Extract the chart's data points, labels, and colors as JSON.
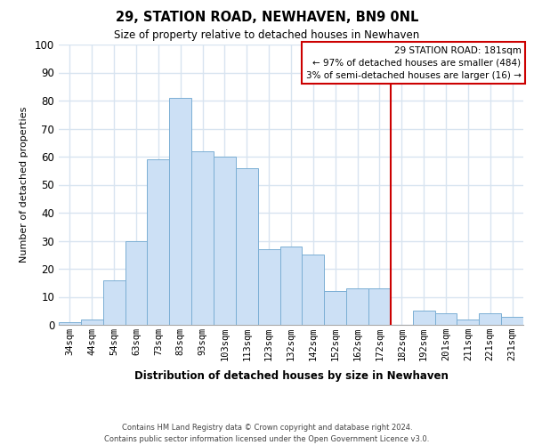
{
  "title": "29, STATION ROAD, NEWHAVEN, BN9 0NL",
  "subtitle": "Size of property relative to detached houses in Newhaven",
  "xlabel": "Distribution of detached houses by size in Newhaven",
  "ylabel": "Number of detached properties",
  "bar_labels": [
    "34sqm",
    "44sqm",
    "54sqm",
    "63sqm",
    "73sqm",
    "83sqm",
    "93sqm",
    "103sqm",
    "113sqm",
    "123sqm",
    "132sqm",
    "142sqm",
    "152sqm",
    "162sqm",
    "172sqm",
    "182sqm",
    "192sqm",
    "201sqm",
    "211sqm",
    "221sqm",
    "231sqm"
  ],
  "bar_values": [
    1,
    2,
    16,
    30,
    59,
    81,
    62,
    60,
    56,
    27,
    28,
    25,
    12,
    13,
    13,
    0,
    5,
    4,
    2,
    4,
    3
  ],
  "bar_color": "#cce0f5",
  "bar_edgecolor": "#7bafd4",
  "vline_x_index": 15,
  "vline_color": "#cc0000",
  "annotation_title": "29 STATION ROAD: 181sqm",
  "annotation_line1": "← 97% of detached houses are smaller (484)",
  "annotation_line2": "3% of semi-detached houses are larger (16) →",
  "annotation_box_color": "#cc0000",
  "ylim": [
    0,
    100
  ],
  "yticks": [
    0,
    10,
    20,
    30,
    40,
    50,
    60,
    70,
    80,
    90,
    100
  ],
  "footnote": "Contains HM Land Registry data © Crown copyright and database right 2024.\nContains public sector information licensed under the Open Government Licence v3.0.",
  "bg_color": "#ffffff",
  "grid_color": "#d8e4f0"
}
